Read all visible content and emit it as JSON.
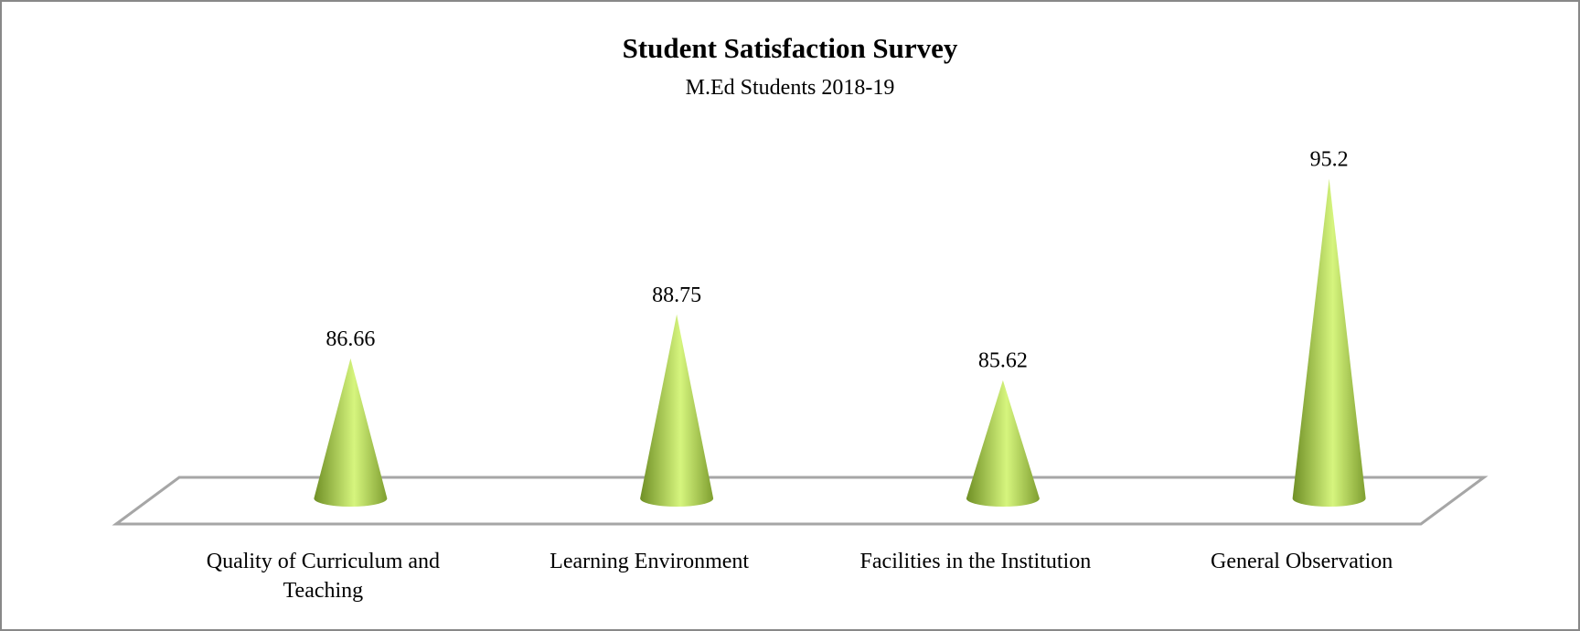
{
  "chart_data": {
    "type": "cone",
    "title": "Student Satisfaction Survey",
    "subtitle": "M.Ed Students 2018-19",
    "categories": [
      "Quality of Curriculum and Teaching",
      "Learning Environment",
      "Facilities in the Institution",
      "General Observation"
    ],
    "values": [
      86.66,
      88.75,
      85.62,
      95.2
    ],
    "color": "#9bc141",
    "ylim": [
      80,
      96
    ]
  }
}
